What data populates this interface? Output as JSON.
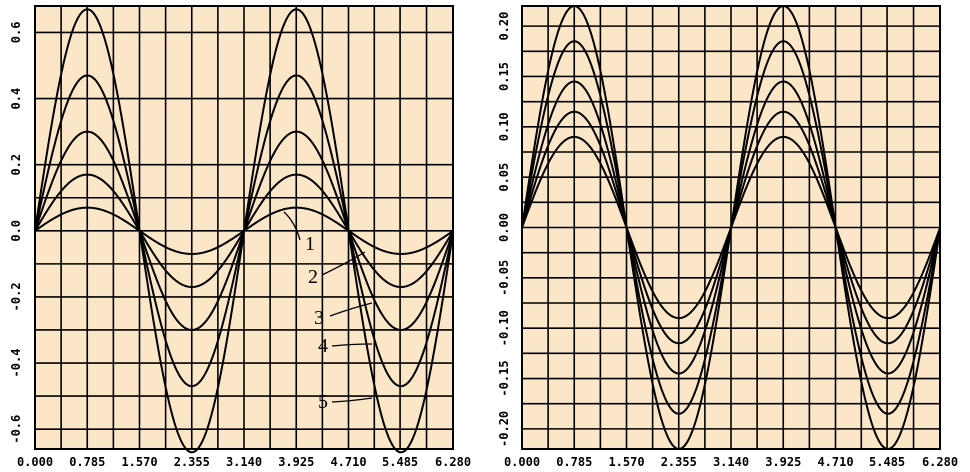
{
  "chart_data": [
    {
      "type": "line",
      "title": "",
      "xlabel": "",
      "ylabel": "",
      "x_ticks": [
        "0.000",
        "0.785",
        "1.570",
        "2.355",
        "3.140",
        "3.925",
        "4.710",
        "5.485",
        "6.280"
      ],
      "y_ticks": [
        "0.6",
        "0.4",
        "0.2",
        "0.0",
        "-0.2",
        "-0.4",
        "-0.6"
      ],
      "xlim": [
        0,
        6.28
      ],
      "ylim": [
        -0.66,
        0.68
      ],
      "grid": true,
      "curve_form": "A*sin(2x)",
      "series": [
        {
          "name": "1",
          "amplitude": 0.07
        },
        {
          "name": "2",
          "amplitude": 0.17
        },
        {
          "name": "3",
          "amplitude": 0.3
        },
        {
          "name": "4",
          "amplitude": 0.47
        },
        {
          "name": "5",
          "amplitude": 0.67
        }
      ],
      "annotations": [
        "1",
        "2",
        "3",
        "4",
        "5"
      ]
    },
    {
      "type": "line",
      "title": "",
      "xlabel": "",
      "ylabel": "",
      "x_ticks": [
        "0.000",
        "0.785",
        "1.570",
        "2.355",
        "3.140",
        "3.925",
        "4.710",
        "5.485",
        "6.280"
      ],
      "y_ticks": [
        "0.20",
        "0.15",
        "0.10",
        "0.05",
        "0.00",
        "-0.05",
        "-0.10",
        "-0.15",
        "-0.20"
      ],
      "xlim": [
        0,
        6.28
      ],
      "ylim": [
        -0.22,
        0.22
      ],
      "grid": true,
      "curve_form": "A*sin(2x)",
      "series": [
        {
          "amplitude": 0.09
        },
        {
          "amplitude": 0.115
        },
        {
          "amplitude": 0.145
        },
        {
          "amplitude": 0.185
        },
        {
          "amplitude": 0.22
        }
      ]
    }
  ]
}
